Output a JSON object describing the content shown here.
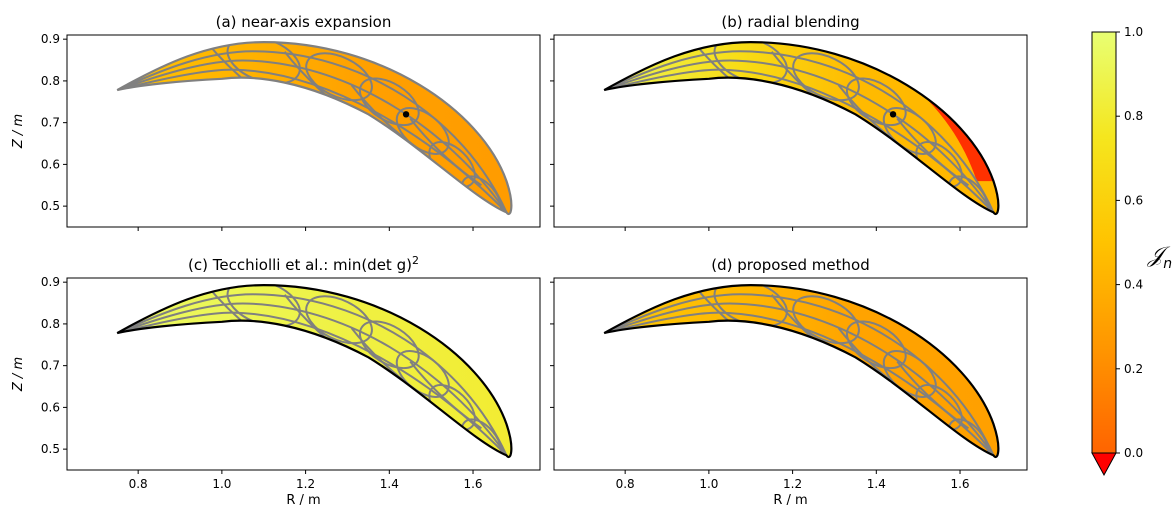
{
  "chart_data": [
    {
      "type": "heatmap",
      "panel": "a",
      "title": "(a) near-axis expansion",
      "xlabel": "",
      "ylabel": "Z / m",
      "xlim": [
        0.63,
        1.76
      ],
      "ylim": [
        0.45,
        0.91
      ],
      "xticks": [
        0.8,
        1.0,
        1.2,
        1.4,
        1.6
      ],
      "yticks": [
        0.5,
        0.6,
        0.7,
        0.8,
        0.9
      ],
      "xtick_labels_shown": false,
      "ytick_labels_shown": true,
      "cross_section": {
        "left_tip": [
          0.75,
          0.778
        ],
        "top_point": [
          1.1,
          0.893
        ],
        "right_tip": [
          1.68,
          0.485
        ],
        "inner_point": [
          1.0,
          0.805
        ]
      },
      "magnetic_axis": [
        1.44,
        0.72
      ],
      "color_value_typical": 0.3,
      "color_value_tip": 0.5,
      "boundary_color": "#808080"
    },
    {
      "type": "heatmap",
      "panel": "b",
      "title": "(b) radial blending",
      "xlabel": "",
      "ylabel": "",
      "xlim": [
        0.63,
        1.76
      ],
      "ylim": [
        0.45,
        0.91
      ],
      "xticks": [
        0.8,
        1.0,
        1.2,
        1.4,
        1.6
      ],
      "yticks": [
        0.5,
        0.6,
        0.7,
        0.8,
        0.9
      ],
      "xtick_labels_shown": false,
      "ytick_labels_shown": false,
      "cross_section": {
        "left_tip": [
          0.75,
          0.778
        ],
        "top_point": [
          1.1,
          0.893
        ],
        "right_tip": [
          1.68,
          0.485
        ],
        "inner_point": [
          1.0,
          0.805
        ]
      },
      "magnetic_axis": [
        1.44,
        0.72
      ],
      "color_value_typical": 0.45,
      "color_value_tip": 0.9,
      "has_negative_regions": true,
      "boundary_color": "#000000"
    },
    {
      "type": "heatmap",
      "panel": "c",
      "title": "(c) Tecchiolli et al.: min(det g)",
      "title_superscript": "2",
      "xlabel": "R / m",
      "ylabel": "Z / m",
      "xlim": [
        0.63,
        1.76
      ],
      "ylim": [
        0.45,
        0.91
      ],
      "xticks": [
        0.8,
        1.0,
        1.2,
        1.4,
        1.6
      ],
      "yticks": [
        0.5,
        0.6,
        0.7,
        0.8,
        0.9
      ],
      "xtick_labels_shown": true,
      "ytick_labels_shown": true,
      "cross_section": {
        "left_tip": [
          0.75,
          0.778
        ],
        "top_point": [
          1.1,
          0.893
        ],
        "right_tip": [
          1.68,
          0.485
        ],
        "inner_point": [
          1.0,
          0.805
        ]
      },
      "color_value_typical": 0.85,
      "color_value_tip": 0.95,
      "boundary_color": "#000000"
    },
    {
      "type": "heatmap",
      "panel": "d",
      "title": "(d) proposed method",
      "xlabel": "R / m",
      "ylabel": "",
      "xlim": [
        0.63,
        1.76
      ],
      "ylim": [
        0.45,
        0.91
      ],
      "xticks": [
        0.8,
        1.0,
        1.2,
        1.4,
        1.6
      ],
      "yticks": [
        0.5,
        0.6,
        0.7,
        0.8,
        0.9
      ],
      "xtick_labels_shown": true,
      "ytick_labels_shown": false,
      "cross_section": {
        "left_tip": [
          0.75,
          0.778
        ],
        "top_point": [
          1.1,
          0.893
        ],
        "right_tip": [
          1.68,
          0.485
        ],
        "inner_point": [
          1.0,
          0.805
        ]
      },
      "color_value_typical": 0.32,
      "color_value_tip": 0.55,
      "boundary_color": "#000000"
    }
  ],
  "colorbar": {
    "label": "𝒥",
    "label_subscript": "n",
    "range": [
      0.0,
      1.0
    ],
    "ticks": [
      0.0,
      0.2,
      0.4,
      0.6,
      0.8,
      1.0
    ],
    "tick_labels": [
      "0.0",
      "0.2",
      "0.4",
      "0.6",
      "0.8",
      "1.0"
    ],
    "extend": "min",
    "under_color": "#ff0000",
    "stops": [
      "#ff6400",
      "#ff9600",
      "#ffc300",
      "#f5e61e",
      "#e8ff73"
    ]
  }
}
